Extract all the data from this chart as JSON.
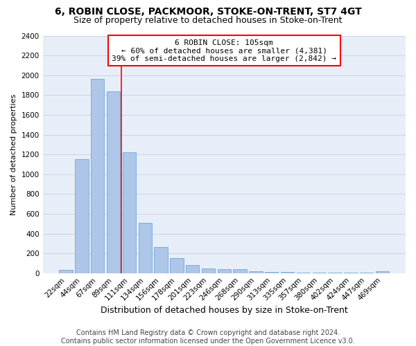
{
  "title": "6, ROBIN CLOSE, PACKMOOR, STOKE-ON-TRENT, ST7 4GT",
  "subtitle": "Size of property relative to detached houses in Stoke-on-Trent",
  "xlabel": "Distribution of detached houses by size in Stoke-on-Trent",
  "ylabel": "Number of detached properties",
  "categories": [
    "22sqm",
    "44sqm",
    "67sqm",
    "89sqm",
    "111sqm",
    "134sqm",
    "156sqm",
    "178sqm",
    "201sqm",
    "223sqm",
    "246sqm",
    "268sqm",
    "290sqm",
    "313sqm",
    "335sqm",
    "357sqm",
    "380sqm",
    "402sqm",
    "424sqm",
    "447sqm",
    "469sqm"
  ],
  "values": [
    30,
    1150,
    1960,
    1840,
    1220,
    510,
    265,
    150,
    85,
    50,
    40,
    40,
    20,
    15,
    10,
    8,
    6,
    5,
    4,
    3,
    20
  ],
  "bar_color": "#aec6e8",
  "bar_edge_color": "#5a9fd4",
  "property_line_color": "red",
  "annotation_text": "6 ROBIN CLOSE: 105sqm\n← 60% of detached houses are smaller (4,381)\n39% of semi-detached houses are larger (2,842) →",
  "annotation_box_color": "white",
  "annotation_box_edge_color": "red",
  "ylim": [
    0,
    2400
  ],
  "yticks": [
    0,
    200,
    400,
    600,
    800,
    1000,
    1200,
    1400,
    1600,
    1800,
    2000,
    2200,
    2400
  ],
  "footer_line1": "Contains HM Land Registry data © Crown copyright and database right 2024.",
  "footer_line2": "Contains public sector information licensed under the Open Government Licence v3.0.",
  "title_fontsize": 10,
  "subtitle_fontsize": 9,
  "xlabel_fontsize": 9,
  "ylabel_fontsize": 8,
  "tick_fontsize": 7.5,
  "annotation_fontsize": 8,
  "footer_fontsize": 7,
  "grid_color": "#c8d4e8",
  "background_color": "#e8eef8"
}
